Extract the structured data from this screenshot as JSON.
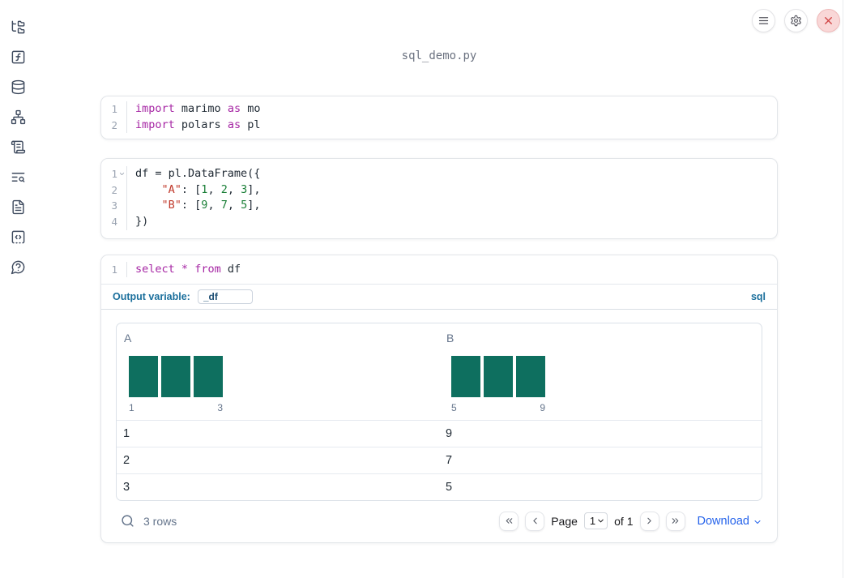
{
  "window": {
    "title": "sql_demo.py"
  },
  "topbar": {
    "buttons": [
      {
        "icon": "menu",
        "name": "notebook-menu"
      },
      {
        "icon": "settings",
        "name": "settings"
      },
      {
        "icon": "x",
        "name": "shutdown"
      }
    ]
  },
  "sidebar": {
    "items": [
      {
        "icon": "file-tree"
      },
      {
        "icon": "function-square"
      },
      {
        "icon": "database"
      },
      {
        "icon": "network"
      },
      {
        "icon": "scroll-text"
      },
      {
        "icon": "text-search"
      },
      {
        "icon": "file-text"
      },
      {
        "icon": "code-snippets"
      },
      {
        "icon": "help-circle"
      }
    ]
  },
  "cells": [
    {
      "id": "imports",
      "lines": [
        {
          "number": "1",
          "fold": false,
          "segments": [
            {
              "text": "import",
              "type": "kw"
            },
            {
              "text": " marimo ",
              "type": "p"
            },
            {
              "text": "as",
              "type": "kw"
            },
            {
              "text": " mo",
              "type": "p"
            }
          ]
        },
        {
          "number": "2",
          "fold": false,
          "segments": [
            {
              "text": "import",
              "type": "kw"
            },
            {
              "text": " polars ",
              "type": "p"
            },
            {
              "text": "as",
              "type": "kw"
            },
            {
              "text": " pl",
              "type": "p"
            }
          ]
        }
      ]
    },
    {
      "id": "dataframe",
      "lines": [
        {
          "number": "1",
          "fold": true,
          "segments": [
            {
              "text": "df = pl.DataFrame({",
              "type": "p"
            }
          ]
        },
        {
          "number": "2",
          "fold": false,
          "segments": [
            {
              "text": "    ",
              "type": "p"
            },
            {
              "text": "\"A\"",
              "type": "str"
            },
            {
              "text": ": [",
              "type": "p"
            },
            {
              "text": "1",
              "type": "num"
            },
            {
              "text": ", ",
              "type": "p"
            },
            {
              "text": "2",
              "type": "num"
            },
            {
              "text": ", ",
              "type": "p"
            },
            {
              "text": "3",
              "type": "num"
            },
            {
              "text": "],",
              "type": "p"
            }
          ]
        },
        {
          "number": "3",
          "fold": false,
          "segments": [
            {
              "text": "    ",
              "type": "p"
            },
            {
              "text": "\"B\"",
              "type": "str"
            },
            {
              "text": ": [",
              "type": "p"
            },
            {
              "text": "9",
              "type": "num"
            },
            {
              "text": ", ",
              "type": "p"
            },
            {
              "text": "7",
              "type": "num"
            },
            {
              "text": ", ",
              "type": "p"
            },
            {
              "text": "5",
              "type": "num"
            },
            {
              "text": "],",
              "type": "p"
            }
          ]
        },
        {
          "number": "4",
          "fold": false,
          "segments": [
            {
              "text": "})",
              "type": "p"
            }
          ]
        }
      ]
    }
  ],
  "sql_cell": {
    "lines": [
      {
        "number": "1",
        "fold": false,
        "segments": [
          {
            "text": "select",
            "type": "kw"
          },
          {
            "text": " ",
            "type": "p"
          },
          {
            "text": "*",
            "type": "kw"
          },
          {
            "text": " ",
            "type": "p"
          },
          {
            "text": "from",
            "type": "kw"
          },
          {
            "text": " df",
            "type": "p"
          }
        ]
      }
    ],
    "output_variable_label": "Output variable:",
    "output_variable_value": "_df",
    "language_label": "sql"
  },
  "data_table": {
    "columns": [
      {
        "name": "A",
        "histogram": {
          "bar_count": 3,
          "bar_values": [
            1,
            1,
            1
          ],
          "min_label": "1",
          "max_label": "3"
        }
      },
      {
        "name": "B",
        "histogram": {
          "bar_count": 3,
          "bar_values": [
            1,
            1,
            1
          ],
          "min_label": "5",
          "max_label": "9"
        }
      }
    ],
    "rows": [
      [
        "1",
        "9"
      ],
      [
        "2",
        "7"
      ],
      [
        "3",
        "5"
      ]
    ],
    "footer": {
      "row_count": "3 rows",
      "page_label": "Page",
      "page_value": "1",
      "page_total_label": "of 1",
      "download_label": "Download"
    }
  },
  "colors": {
    "keyword": "#a626a4",
    "string": "#c0392b",
    "number": "#1a7f37",
    "histogram_bar": "#0e6f5f",
    "label_blue": "#1b6f9c",
    "link_blue": "#2563eb",
    "close_red": "#d04444"
  }
}
